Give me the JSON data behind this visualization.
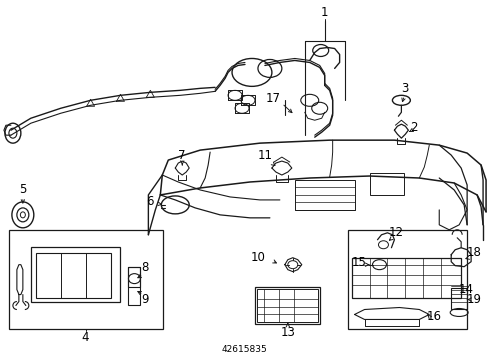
{
  "bg_color": "#ffffff",
  "line_color": "#1a1a1a",
  "fig_width": 4.89,
  "fig_height": 3.6,
  "dpi": 100,
  "footnote": "42615835",
  "label_fs": 8.5,
  "small_fs": 7.0
}
